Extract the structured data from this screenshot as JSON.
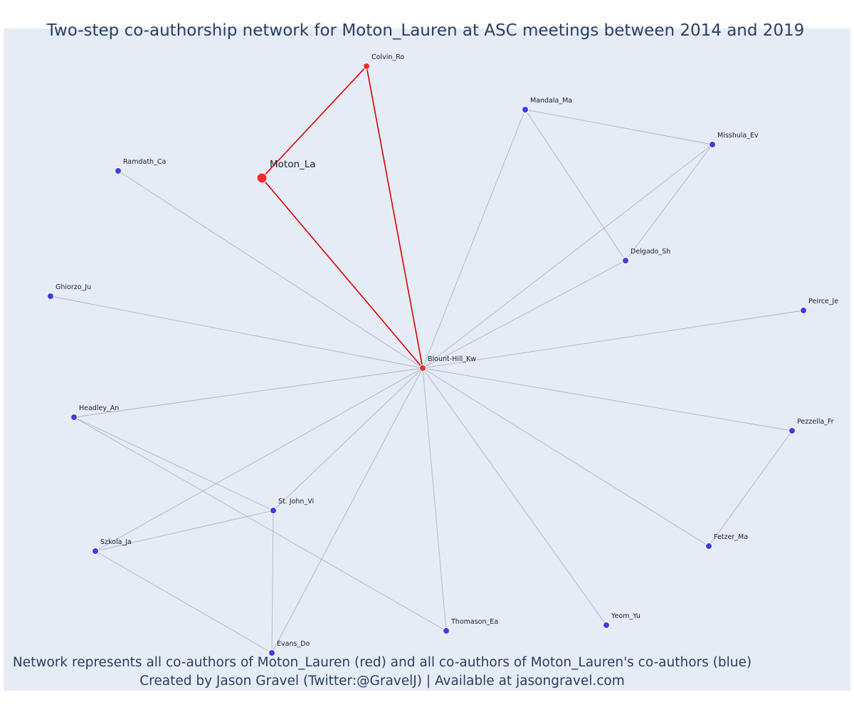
{
  "title": "Two-step co-authorship network for Moton_Lauren at ASC meetings between 2014 and 2019",
  "caption": {
    "line1": "Network represents all co-authors of Moton_Lauren (red) and all co-authors of Moton_Lauren's co-authors (blue)",
    "line2": "Created by Jason Gravel (Twitter:@GravelJ) | Available at jasongravel.com"
  },
  "colors": {
    "plot_background": "#e5ecf6",
    "red_node": "#ef2b2b",
    "blue_node": "#3b3fe4",
    "red_edge": "#e00000",
    "grey_edge": "#b0b4c4",
    "text": "#2a3f5f"
  },
  "network": {
    "nodes": [
      {
        "id": "Moton_La",
        "label": "Moton_La",
        "group": "focal"
      },
      {
        "id": "Colvin_Ro",
        "label": "Colvin_Ro",
        "group": "red"
      },
      {
        "id": "Blount-Hill_Kw",
        "label": "Blount-Hill_Kw",
        "group": "red"
      },
      {
        "id": "Mandala_Ma",
        "label": "Mandala_Ma",
        "group": "blue"
      },
      {
        "id": "Misshula_Ev",
        "label": "Misshula_Ev",
        "group": "blue"
      },
      {
        "id": "Ramdath_Ca",
        "label": "Ramdath_Ca",
        "group": "blue"
      },
      {
        "id": "Delgado_Sh",
        "label": "Delgado_Sh",
        "group": "blue"
      },
      {
        "id": "Ghiorzo_Ju",
        "label": "Ghiorzo_Ju",
        "group": "blue"
      },
      {
        "id": "Peirce_Je",
        "label": "Peirce_Je",
        "group": "blue"
      },
      {
        "id": "Headley_An",
        "label": "Headley_An",
        "group": "blue"
      },
      {
        "id": "Pezzella_Fr",
        "label": "Pezzella_Fr",
        "group": "blue"
      },
      {
        "id": "St. John_Vi",
        "label": "St. John_Vi",
        "group": "blue"
      },
      {
        "id": "Szkola_Ja",
        "label": "Szkola_Ja",
        "group": "blue"
      },
      {
        "id": "Fetzer_Ma",
        "label": "Fetzer_Ma",
        "group": "blue"
      },
      {
        "id": "Yeom_Yu",
        "label": "Yeom_Yu",
        "group": "blue"
      },
      {
        "id": "Thomason_Ea",
        "label": "Thomason_Ea",
        "group": "blue"
      },
      {
        "id": "Evans_Do",
        "label": "Evans_Do",
        "group": "blue"
      }
    ],
    "edges": [
      {
        "source": "Moton_La",
        "target": "Colvin_Ro",
        "type": "red"
      },
      {
        "source": "Moton_La",
        "target": "Blount-Hill_Kw",
        "type": "red"
      },
      {
        "source": "Colvin_Ro",
        "target": "Blount-Hill_Kw",
        "type": "red"
      },
      {
        "source": "Blount-Hill_Kw",
        "target": "Ramdath_Ca",
        "type": "grey"
      },
      {
        "source": "Blount-Hill_Kw",
        "target": "Ghiorzo_Ju",
        "type": "grey"
      },
      {
        "source": "Blount-Hill_Kw",
        "target": "Headley_An",
        "type": "grey"
      },
      {
        "source": "Blount-Hill_Kw",
        "target": "Szkola_Ja",
        "type": "grey"
      },
      {
        "source": "Blount-Hill_Kw",
        "target": "St. John_Vi",
        "type": "grey"
      },
      {
        "source": "Blount-Hill_Kw",
        "target": "Evans_Do",
        "type": "grey"
      },
      {
        "source": "Blount-Hill_Kw",
        "target": "Thomason_Ea",
        "type": "grey"
      },
      {
        "source": "Blount-Hill_Kw",
        "target": "Yeom_Yu",
        "type": "grey"
      },
      {
        "source": "Blount-Hill_Kw",
        "target": "Fetzer_Ma",
        "type": "grey"
      },
      {
        "source": "Blount-Hill_Kw",
        "target": "Pezzella_Fr",
        "type": "grey"
      },
      {
        "source": "Blount-Hill_Kw",
        "target": "Peirce_Je",
        "type": "grey"
      },
      {
        "source": "Blount-Hill_Kw",
        "target": "Delgado_Sh",
        "type": "grey"
      },
      {
        "source": "Blount-Hill_Kw",
        "target": "Misshula_Ev",
        "type": "grey"
      },
      {
        "source": "Blount-Hill_Kw",
        "target": "Mandala_Ma",
        "type": "grey"
      },
      {
        "source": "Mandala_Ma",
        "target": "Misshula_Ev",
        "type": "grey"
      },
      {
        "source": "Mandala_Ma",
        "target": "Delgado_Sh",
        "type": "grey"
      },
      {
        "source": "Misshula_Ev",
        "target": "Delgado_Sh",
        "type": "grey"
      },
      {
        "source": "Pezzella_Fr",
        "target": "Fetzer_Ma",
        "type": "grey"
      },
      {
        "source": "Headley_An",
        "target": "St. John_Vi",
        "type": "grey"
      },
      {
        "source": "Headley_An",
        "target": "Thomason_Ea",
        "type": "grey"
      },
      {
        "source": "St. John_Vi",
        "target": "Szkola_Ja",
        "type": "grey"
      },
      {
        "source": "St. John_Vi",
        "target": "Evans_Do",
        "type": "grey"
      },
      {
        "source": "Szkola_Ja",
        "target": "Evans_Do",
        "type": "grey"
      }
    ]
  }
}
